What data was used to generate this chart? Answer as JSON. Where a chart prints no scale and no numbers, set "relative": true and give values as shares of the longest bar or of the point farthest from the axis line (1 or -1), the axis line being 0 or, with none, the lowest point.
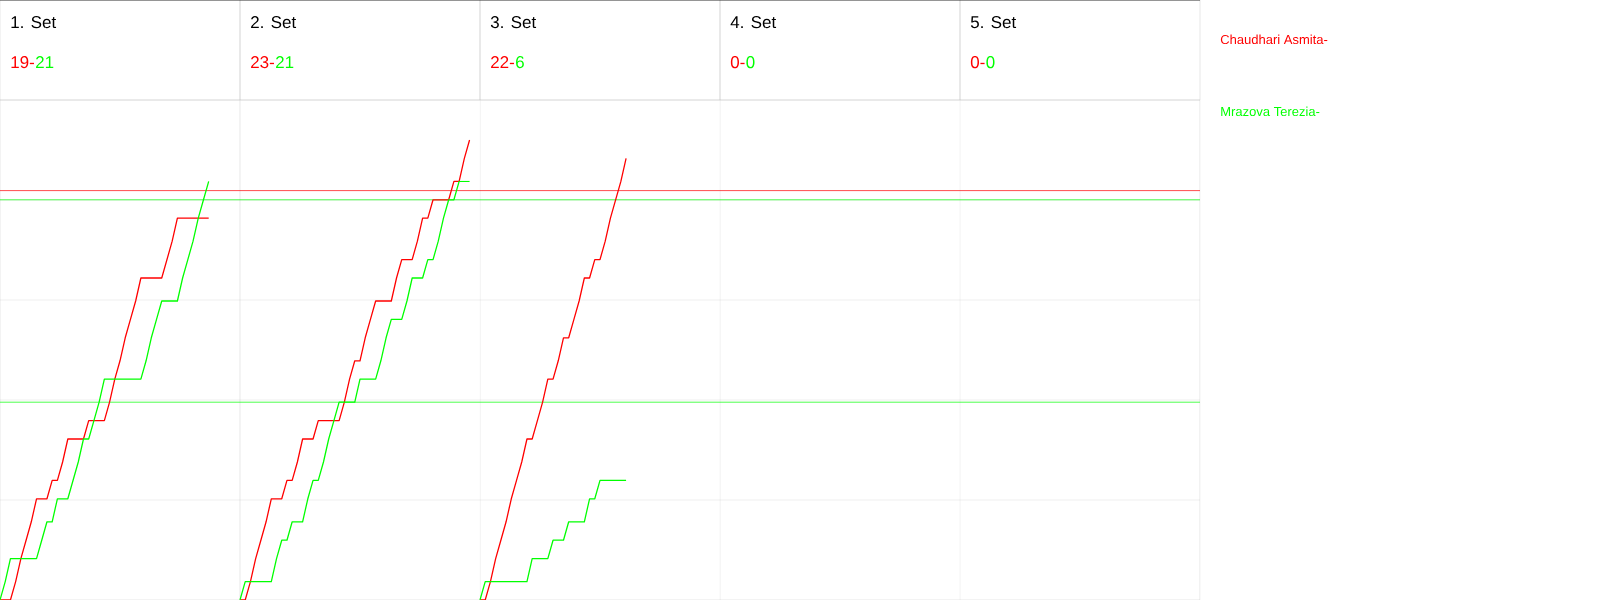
{
  "chart_data": {
    "type": "line",
    "relative": true,
    "line_style": "solid",
    "annotations": [
      "1. Set",
      "19-",
      "21",
      "2. Set",
      "23-",
      "21",
      "3. Set",
      "22-",
      "6",
      "4. Set",
      "0-",
      "0",
      "5. Set",
      "0-",
      "0"
    ],
    "categories": [
      null,
      null,
      null,
      null,
      null,
      null,
      null,
      null,
      null,
      null,
      null,
      null,
      null,
      null,
      null,
      null,
      null,
      null,
      null,
      null,
      null,
      null,
      null,
      null,
      null,
      null,
      null,
      null,
      null,
      null,
      null,
      null,
      null,
      null,
      null,
      null,
      null,
      null,
      null,
      null,
      null,
      null,
      null,
      null,
      null,
      null,
      null,
      null,
      null,
      null,
      null,
      null,
      null,
      null,
      null,
      null,
      null,
      null,
      null,
      null,
      null,
      null,
      null,
      null,
      null,
      null,
      null,
      null,
      null,
      null,
      null,
      null,
      null,
      null,
      null,
      null,
      null,
      null,
      null,
      null,
      null,
      null,
      null,
      null,
      null,
      null,
      null,
      null,
      null,
      null,
      null,
      null,
      null,
      null,
      null,
      null,
      null,
      null,
      null,
      null,
      null,
      null,
      null,
      null,
      null,
      null,
      null,
      null,
      null,
      null,
      null,
      null,
      null,
      null,
      null,
      null,
      null,
      null,
      null,
      null,
      null,
      null,
      null,
      null,
      null,
      null,
      null,
      null,
      null,
      null,
      null,
      null,
      null,
      null,
      null,
      null,
      null,
      null,
      null,
      null,
      null,
      null,
      null,
      null,
      null,
      null,
      null,
      null,
      null,
      null,
      null,
      null,
      null,
      null,
      null,
      null,
      null,
      null,
      null,
      null,
      null,
      null,
      null,
      null,
      null,
      null,
      null,
      null,
      null,
      null,
      null,
      null,
      null,
      null,
      null,
      null,
      null,
      null,
      null,
      null,
      null,
      null,
      null,
      null,
      null,
      null,
      null,
      null,
      null,
      null,
      null,
      null,
      null,
      null,
      null,
      null,
      null,
      null,
      null,
      null,
      null,
      null,
      null,
      null,
      null,
      null,
      null,
      null,
      null,
      null,
      null,
      null,
      null,
      null,
      null,
      null,
      null,
      null,
      null,
      null,
      null,
      null,
      null,
      null,
      null,
      null,
      null,
      null,
      null,
      null
    ],
    "ref_lines": [
      {
        "axis": "y",
        "value": 0.89,
        "color": "#ff0000"
      },
      {
        "axis": "y",
        "value": 0.87,
        "color": "#00ff00"
      },
      {
        "axis": "y",
        "value": 0.43,
        "color": "#00ff00"
      }
    ],
    "series": [
      {
        "name": "Chaudhari Asmita-",
        "color": "#ff0000",
        "values": [
          0,
          0,
          0,
          0.04,
          0.09,
          0.13,
          0.17,
          0.22,
          0.22,
          0.22,
          0.26,
          0.26,
          0.3,
          0.35,
          0.35,
          0.35,
          0.35,
          0.39,
          0.39,
          0.39,
          0.39,
          0.43,
          0.48,
          0.52,
          0.57,
          0.61,
          0.65,
          0.7,
          0.7,
          0.7,
          0.7,
          0.7,
          0.74,
          0.78,
          0.83,
          0.83,
          0.83,
          0.83,
          0.83,
          0.83,
          0.83,
          null,
          null,
          null,
          null,
          null,
          null,
          null,
          null,
          null,
          null,
          null,
          null,
          null,
          null,
          null,
          null,
          null,
          null,
          null,
          null,
          null,
          null,
          null,
          null,
          null,
          null,
          null,
          null,
          null,
          null,
          null,
          null,
          null,
          null,
          null,
          null,
          null,
          null,
          null,
          null,
          null,
          null,
          null,
          null,
          null,
          null,
          null,
          null,
          null,
          null,
          null,
          null,
          null,
          null,
          null,
          null,
          null,
          null,
          null,
          null,
          null,
          null,
          null,
          null,
          null,
          null,
          null,
          null,
          null,
          null,
          null,
          null,
          null,
          null,
          null,
          null,
          null,
          null,
          null,
          null,
          null,
          null,
          null,
          null,
          null,
          null,
          null,
          null,
          null,
          null,
          null,
          null,
          null,
          null,
          null,
          null,
          null,
          null,
          null,
          null,
          null,
          null,
          null,
          null,
          null,
          null,
          null,
          null,
          null,
          null,
          null,
          null,
          null,
          null,
          null,
          null,
          null,
          null,
          null,
          null,
          null,
          null,
          null,
          null,
          null,
          null,
          null,
          null,
          null,
          null,
          null,
          null,
          null,
          null,
          null,
          null,
          null,
          null,
          null,
          null,
          null,
          null,
          null,
          null,
          null,
          null,
          null,
          null,
          null,
          null,
          null,
          null,
          null,
          null,
          null,
          null,
          null,
          null,
          null,
          null,
          null,
          null,
          null,
          null,
          null,
          null,
          null,
          null,
          null,
          null,
          null,
          null,
          null,
          null,
          null,
          null,
          null,
          null,
          null,
          null,
          null,
          null,
          null,
          null,
          null,
          null,
          null,
          null,
          null
        ]
      },
      {
        "name": "Mrazova Terezia-",
        "color": "#00ff00",
        "values": [
          0,
          0.04,
          0.09,
          0.09,
          0.09,
          0.09,
          0.09,
          0.09,
          0.13,
          0.17,
          0.17,
          0.22,
          0.22,
          0.22,
          0.26,
          0.3,
          0.35,
          0.35,
          0.39,
          0.43,
          0.48,
          0.48,
          0.48,
          0.48,
          0.48,
          0.48,
          0.48,
          0.48,
          0.52,
          0.57,
          0.61,
          0.65,
          0.65,
          0.65,
          0.65,
          0.7,
          0.74,
          0.78,
          0.83,
          0.87,
          0.91,
          null,
          null,
          null,
          null,
          null,
          null,
          null,
          null,
          null,
          null,
          null,
          null,
          null,
          null,
          null,
          null,
          null,
          null,
          null,
          null,
          null,
          null,
          null,
          null,
          null,
          null,
          null,
          null,
          null,
          null,
          null,
          null,
          null,
          null,
          null,
          null,
          null,
          null,
          null,
          null,
          null,
          null,
          null,
          null,
          null,
          null,
          null,
          null,
          null,
          null,
          null,
          null,
          null,
          null,
          null,
          null,
          null,
          null,
          null,
          null,
          null,
          null,
          null,
          null,
          null,
          null,
          null,
          null,
          null,
          null,
          null,
          null,
          null,
          null,
          null,
          null,
          null,
          null,
          null,
          null,
          null,
          null,
          null,
          null,
          null,
          null,
          null,
          null,
          null,
          null,
          null,
          null,
          null,
          null,
          null,
          null,
          null,
          null,
          null,
          null,
          null,
          null,
          null,
          null,
          null,
          null,
          null,
          null,
          null,
          null,
          null,
          null,
          null,
          null,
          null,
          null,
          null,
          null,
          null,
          null,
          null,
          null,
          null,
          null,
          null,
          null,
          null,
          null,
          null,
          null,
          null,
          null,
          null,
          null,
          null,
          null,
          null,
          null,
          null,
          null,
          null,
          null,
          null,
          null,
          null,
          null,
          null,
          null,
          null,
          null,
          null,
          null,
          null,
          null,
          null,
          null,
          null,
          null,
          null,
          null,
          null,
          null,
          null,
          null,
          null,
          null,
          null,
          null,
          null,
          null,
          null,
          null,
          null,
          null,
          null,
          null,
          null,
          null,
          null,
          null,
          null,
          null,
          null,
          null,
          null,
          null,
          null,
          null,
          null
        ]
      },
      {
        "color": "#ff0000",
        "values": [
          null,
          null,
          null,
          null,
          null,
          null,
          null,
          null,
          null,
          null,
          null,
          null,
          null,
          null,
          null,
          null,
          null,
          null,
          null,
          null,
          null,
          null,
          null,
          null,
          null,
          null,
          null,
          null,
          null,
          null,
          null,
          null,
          null,
          null,
          null,
          null,
          null,
          null,
          null,
          null,
          null,
          null,
          null,
          null,
          null,
          null,
          0,
          0,
          0.04,
          0.09,
          0.13,
          0.17,
          0.22,
          0.22,
          0.22,
          0.26,
          0.26,
          0.3,
          0.35,
          0.35,
          0.35,
          0.39,
          0.39,
          0.39,
          0.39,
          0.39,
          0.43,
          0.48,
          0.52,
          0.52,
          0.57,
          0.61,
          0.65,
          0.65,
          0.65,
          0.65,
          0.7,
          0.74,
          0.74,
          0.74,
          0.78,
          0.83,
          0.83,
          0.87,
          0.87,
          0.87,
          0.87,
          0.91,
          0.91,
          0.96,
          1,
          null,
          null,
          null,
          null,
          null,
          null,
          null,
          null,
          null,
          null,
          null,
          null,
          null,
          null,
          null,
          null,
          null,
          null,
          null,
          null,
          null,
          null,
          null,
          null,
          null,
          null,
          null,
          null,
          null,
          null,
          null,
          null,
          null,
          null,
          null,
          null,
          null,
          null,
          null,
          null,
          null,
          null,
          null,
          null,
          null,
          null,
          null,
          null,
          null,
          null,
          null,
          null,
          null,
          null,
          null,
          null,
          null,
          null,
          null,
          null,
          null,
          null,
          null,
          null,
          null,
          null,
          null,
          null,
          null,
          null,
          null,
          null,
          null,
          null,
          null,
          null,
          null,
          null,
          null,
          null,
          null,
          null,
          null,
          null,
          null,
          null,
          null,
          null,
          null,
          null,
          null,
          null,
          null,
          null,
          null,
          null,
          null,
          null,
          null,
          null,
          null,
          null,
          null,
          null,
          null,
          null,
          null,
          null,
          null,
          null,
          null,
          null,
          null,
          null,
          null,
          null,
          null,
          null,
          null,
          null,
          null,
          null,
          null,
          null,
          null,
          null,
          null,
          null,
          null,
          null,
          null,
          null,
          null,
          null,
          null,
          null,
          null,
          null,
          null
        ]
      },
      {
        "color": "#00ff00",
        "values": [
          null,
          null,
          null,
          null,
          null,
          null,
          null,
          null,
          null,
          null,
          null,
          null,
          null,
          null,
          null,
          null,
          null,
          null,
          null,
          null,
          null,
          null,
          null,
          null,
          null,
          null,
          null,
          null,
          null,
          null,
          null,
          null,
          null,
          null,
          null,
          null,
          null,
          null,
          null,
          null,
          null,
          null,
          null,
          null,
          null,
          null,
          0,
          0.04,
          0.04,
          0.04,
          0.04,
          0.04,
          0.04,
          0.09,
          0.13,
          0.13,
          0.17,
          0.17,
          0.17,
          0.22,
          0.26,
          0.26,
          0.3,
          0.35,
          0.39,
          0.43,
          0.43,
          0.43,
          0.43,
          0.48,
          0.48,
          0.48,
          0.48,
          0.52,
          0.57,
          0.61,
          0.61,
          0.61,
          0.65,
          0.7,
          0.7,
          0.7,
          0.74,
          0.74,
          0.78,
          0.83,
          0.87,
          0.87,
          0.91,
          0.91,
          0.91,
          null,
          null,
          null,
          null,
          null,
          null,
          null,
          null,
          null,
          null,
          null,
          null,
          null,
          null,
          null,
          null,
          null,
          null,
          null,
          null,
          null,
          null,
          null,
          null,
          null,
          null,
          null,
          null,
          null,
          null,
          null,
          null,
          null,
          null,
          null,
          null,
          null,
          null,
          null,
          null,
          null,
          null,
          null,
          null,
          null,
          null,
          null,
          null,
          null,
          null,
          null,
          null,
          null,
          null,
          null,
          null,
          null,
          null,
          null,
          null,
          null,
          null,
          null,
          null,
          null,
          null,
          null,
          null,
          null,
          null,
          null,
          null,
          null,
          null,
          null,
          null,
          null,
          null,
          null,
          null,
          null,
          null,
          null,
          null,
          null,
          null,
          null,
          null,
          null,
          null,
          null,
          null,
          null,
          null,
          null,
          null,
          null,
          null,
          null,
          null,
          null,
          null,
          null,
          null,
          null,
          null,
          null,
          null,
          null,
          null,
          null,
          null,
          null,
          null,
          null,
          null,
          null,
          null,
          null,
          null,
          null,
          null,
          null,
          null,
          null,
          null,
          null,
          null,
          null,
          null,
          null,
          null,
          null,
          null,
          null,
          null,
          null,
          null,
          null
        ]
      },
      {
        "color": "#ff0000",
        "values": [
          null,
          null,
          null,
          null,
          null,
          null,
          null,
          null,
          null,
          null,
          null,
          null,
          null,
          null,
          null,
          null,
          null,
          null,
          null,
          null,
          null,
          null,
          null,
          null,
          null,
          null,
          null,
          null,
          null,
          null,
          null,
          null,
          null,
          null,
          null,
          null,
          null,
          null,
          null,
          null,
          null,
          null,
          null,
          null,
          null,
          null,
          null,
          null,
          null,
          null,
          null,
          null,
          null,
          null,
          null,
          null,
          null,
          null,
          null,
          null,
          null,
          null,
          null,
          null,
          null,
          null,
          null,
          null,
          null,
          null,
          null,
          null,
          null,
          null,
          null,
          null,
          null,
          null,
          null,
          null,
          null,
          null,
          null,
          null,
          null,
          null,
          null,
          null,
          null,
          null,
          null,
          null,
          0,
          0,
          0.04,
          0.09,
          0.13,
          0.17,
          0.22,
          0.26,
          0.3,
          0.35,
          0.35,
          0.39,
          0.43,
          0.48,
          0.48,
          0.52,
          0.57,
          0.57,
          0.61,
          0.65,
          0.7,
          0.7,
          0.74,
          0.74,
          0.78,
          0.83,
          0.87,
          0.91,
          0.96,
          null,
          null,
          null,
          null,
          null,
          null,
          null,
          null,
          null,
          null,
          null,
          null,
          null,
          null,
          null,
          null,
          null,
          null,
          null,
          null,
          null,
          null,
          null,
          null,
          null,
          null,
          null,
          null,
          null,
          null,
          null,
          null,
          null,
          null,
          null,
          null,
          null,
          null,
          null,
          null,
          null,
          null,
          null,
          null,
          null,
          null,
          null,
          null,
          null,
          null,
          null,
          null,
          null,
          null,
          null,
          null,
          null,
          null,
          null,
          null,
          null,
          null,
          null,
          null,
          null,
          null,
          null,
          null,
          null,
          null,
          null,
          null,
          null,
          null,
          null,
          null,
          null,
          null,
          null,
          null,
          null,
          null,
          null,
          null,
          null,
          null,
          null,
          null,
          null,
          null,
          null,
          null,
          null,
          null,
          null,
          null,
          null,
          null,
          null,
          null,
          null,
          null,
          null,
          null,
          null,
          null,
          null,
          null,
          null
        ]
      },
      {
        "color": "#00ff00",
        "values": [
          null,
          null,
          null,
          null,
          null,
          null,
          null,
          null,
          null,
          null,
          null,
          null,
          null,
          null,
          null,
          null,
          null,
          null,
          null,
          null,
          null,
          null,
          null,
          null,
          null,
          null,
          null,
          null,
          null,
          null,
          null,
          null,
          null,
          null,
          null,
          null,
          null,
          null,
          null,
          null,
          null,
          null,
          null,
          null,
          null,
          null,
          null,
          null,
          null,
          null,
          null,
          null,
          null,
          null,
          null,
          null,
          null,
          null,
          null,
          null,
          null,
          null,
          null,
          null,
          null,
          null,
          null,
          null,
          null,
          null,
          null,
          null,
          null,
          null,
          null,
          null,
          null,
          null,
          null,
          null,
          null,
          null,
          null,
          null,
          null,
          null,
          null,
          null,
          null,
          null,
          null,
          null,
          0,
          0.04,
          0.04,
          0.04,
          0.04,
          0.04,
          0.04,
          0.04,
          0.04,
          0.04,
          0.09,
          0.09,
          0.09,
          0.09,
          0.13,
          0.13,
          0.13,
          0.17,
          0.17,
          0.17,
          0.17,
          0.22,
          0.22,
          0.26,
          0.26,
          0.26,
          0.26,
          0.26,
          0.26,
          null,
          null,
          null,
          null,
          null,
          null,
          null,
          null,
          null,
          null,
          null,
          null,
          null,
          null,
          null,
          null,
          null,
          null,
          null,
          null,
          null,
          null,
          null,
          null,
          null,
          null,
          null,
          null,
          null,
          null,
          null,
          null,
          null,
          null,
          null,
          null,
          null,
          null,
          null,
          null,
          null,
          null,
          null,
          null,
          null,
          null,
          null,
          null,
          null,
          null,
          null,
          null,
          null,
          null,
          null,
          null,
          null,
          null,
          null,
          null,
          null,
          null,
          null,
          null,
          null,
          null,
          null,
          null,
          null,
          null,
          null,
          null,
          null,
          null,
          null,
          null,
          null,
          null,
          null,
          null,
          null,
          null,
          null,
          null,
          null,
          null,
          null,
          null,
          null,
          null,
          null,
          null,
          null,
          null,
          null,
          null,
          null,
          null,
          null,
          null,
          null,
          null,
          null,
          null,
          null,
          null,
          null,
          null,
          null
        ]
      }
    ]
  }
}
